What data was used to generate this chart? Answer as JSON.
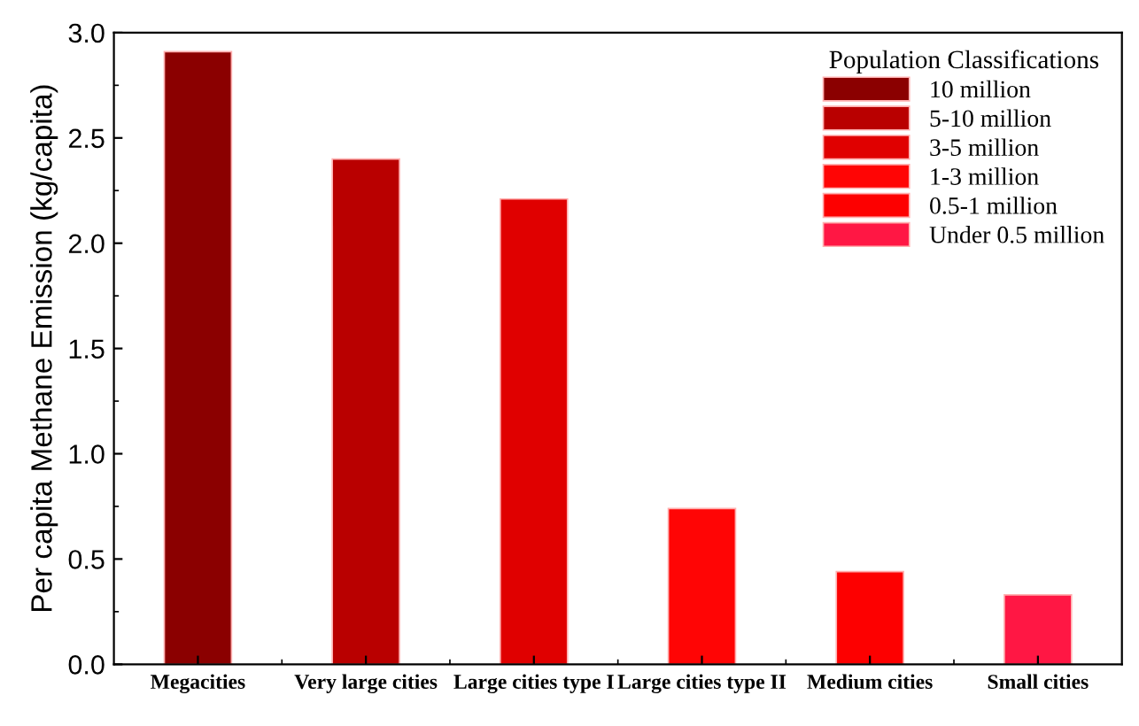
{
  "chart_data": {
    "type": "bar",
    "ylabel": "Per capita Methane Emission (kg/capita)",
    "legend_title": "Population Classifications",
    "categories": [
      "Megacities",
      "Very large cities",
      "Large cities type I",
      "Large cities type II",
      "Medium cities",
      "Small cities"
    ],
    "series": [
      {
        "name": "10 million",
        "color": "#8b0000",
        "values": [
          2.91,
          null,
          null,
          null,
          null,
          null
        ]
      },
      {
        "name": "5-10 million",
        "color": "#b90000",
        "values": [
          null,
          2.4,
          null,
          null,
          null,
          null
        ]
      },
      {
        "name": "3-5 million",
        "color": "#e00000",
        "values": [
          null,
          null,
          2.21,
          null,
          null,
          null
        ]
      },
      {
        "name": "1-3 million",
        "color": "#ff0505",
        "values": [
          null,
          null,
          null,
          0.74,
          null,
          null
        ]
      },
      {
        "name": "0.5-1 million",
        "color": "#fd0000",
        "values": [
          null,
          null,
          null,
          null,
          0.44,
          null
        ]
      },
      {
        "name": "Under 0.5 million",
        "color": "#ff1744",
        "values": [
          null,
          null,
          null,
          null,
          null,
          0.33
        ]
      }
    ],
    "ylim": [
      0,
      3.0
    ],
    "yticks": [
      {
        "value": 0,
        "label": "0.0"
      },
      0.5,
      {
        "value": 1,
        "label": "1.0"
      },
      1.5,
      {
        "value": 2,
        "label": "2.0"
      },
      2.5,
      {
        "value": 3,
        "label": "3.0"
      }
    ],
    "legend": "top right",
    "grid": false
  }
}
